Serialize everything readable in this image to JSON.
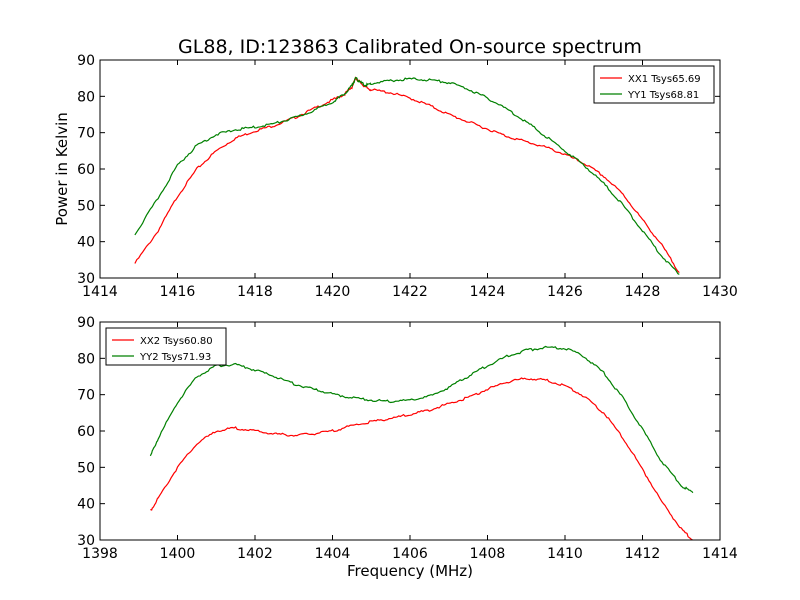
{
  "figure": {
    "title": "GL88, ID:123863 Calibrated On-source spectrum",
    "ylabel": "Power in Kelvin",
    "xlabel": "Frequency (MHz)"
  },
  "chart_data": [
    {
      "type": "line",
      "title": "GL88, ID:123863 Calibrated On-source spectrum",
      "xlabel": "",
      "ylabel": "Power in Kelvin",
      "xlim": [
        1414,
        1430
      ],
      "ylim": [
        30,
        90
      ],
      "xticks": [
        1414,
        1416,
        1418,
        1420,
        1422,
        1424,
        1426,
        1428,
        1430
      ],
      "yticks": [
        30,
        40,
        50,
        60,
        70,
        80,
        90
      ],
      "legend": "top-right",
      "series": [
        {
          "name": "XX1 Tsys65.69",
          "color": "#ff0000",
          "x": [
            1414.9,
            1415.5,
            1416.0,
            1416.5,
            1417.0,
            1417.5,
            1418.0,
            1418.5,
            1419.0,
            1419.5,
            1420.0,
            1420.3,
            1420.5,
            1420.6,
            1420.7,
            1420.85,
            1421.0,
            1421.5,
            1422.0,
            1422.5,
            1423.0,
            1423.5,
            1424.0,
            1424.5,
            1425.0,
            1425.5,
            1426.0,
            1426.5,
            1427.0,
            1427.5,
            1428.0,
            1428.5,
            1428.95
          ],
          "y": [
            34.0,
            43.0,
            52.5,
            60.0,
            65.0,
            68.5,
            70.5,
            72.0,
            74.0,
            76.5,
            79.0,
            80.5,
            82.5,
            85.0,
            84.0,
            82.5,
            81.8,
            81.0,
            79.5,
            77.5,
            75.0,
            73.0,
            71.0,
            69.0,
            67.5,
            66.0,
            64.0,
            61.5,
            58.0,
            53.0,
            46.0,
            39.0,
            31.5
          ]
        },
        {
          "name": "YY1 Tsys68.81",
          "color": "#008000",
          "x": [
            1414.9,
            1415.5,
            1416.0,
            1416.5,
            1417.0,
            1417.5,
            1418.0,
            1418.5,
            1419.0,
            1419.5,
            1420.0,
            1420.3,
            1420.5,
            1420.6,
            1420.7,
            1420.85,
            1421.0,
            1421.5,
            1422.0,
            1422.5,
            1423.0,
            1423.5,
            1424.0,
            1424.5,
            1425.0,
            1425.5,
            1426.0,
            1426.5,
            1427.0,
            1427.5,
            1428.0,
            1428.5,
            1428.95
          ],
          "y": [
            42.0,
            52.0,
            61.0,
            66.5,
            69.5,
            70.8,
            71.5,
            72.5,
            74.0,
            76.0,
            78.5,
            80.5,
            83.0,
            85.0,
            84.0,
            83.0,
            83.5,
            84.3,
            84.8,
            84.5,
            83.8,
            82.0,
            79.5,
            76.5,
            73.0,
            69.0,
            65.0,
            61.0,
            56.0,
            50.0,
            43.0,
            36.0,
            31.0
          ]
        }
      ]
    },
    {
      "type": "line",
      "title": "",
      "xlabel": "Frequency (MHz)",
      "ylabel": "",
      "xlim": [
        1398,
        1414
      ],
      "ylim": [
        30,
        90
      ],
      "xticks": [
        1398,
        1400,
        1402,
        1404,
        1406,
        1408,
        1410,
        1412,
        1414
      ],
      "yticks": [
        30,
        40,
        50,
        60,
        70,
        80,
        90
      ],
      "legend": "top-left",
      "series": [
        {
          "name": "XX2 Tsys60.80",
          "color": "#ff0000",
          "x": [
            1399.3,
            1399.5,
            1400.0,
            1400.5,
            1401.0,
            1401.5,
            1402.0,
            1402.5,
            1403.0,
            1403.5,
            1404.0,
            1404.5,
            1405.0,
            1405.5,
            1406.0,
            1406.5,
            1407.0,
            1407.5,
            1408.0,
            1408.5,
            1409.0,
            1409.5,
            1410.0,
            1410.5,
            1411.0,
            1411.5,
            1412.0,
            1412.5,
            1413.0,
            1413.3
          ],
          "y": [
            38.0,
            41.5,
            50.0,
            56.5,
            60.0,
            60.8,
            60.0,
            59.2,
            58.8,
            59.2,
            60.0,
            61.5,
            62.5,
            63.5,
            64.5,
            65.8,
            67.5,
            69.2,
            71.5,
            73.5,
            74.5,
            74.0,
            72.5,
            69.5,
            65.0,
            58.0,
            49.5,
            40.5,
            33.0,
            30.0
          ]
        },
        {
          "name": "YY2 Tsys71.93",
          "color": "#008000",
          "x": [
            1399.3,
            1399.5,
            1400.0,
            1400.5,
            1401.0,
            1401.5,
            1402.0,
            1402.5,
            1403.0,
            1403.5,
            1404.0,
            1404.5,
            1405.0,
            1405.5,
            1406.0,
            1406.5,
            1407.0,
            1407.5,
            1408.0,
            1408.5,
            1409.0,
            1409.5,
            1410.0,
            1410.5,
            1411.0,
            1411.5,
            1412.0,
            1412.5,
            1413.0,
            1413.3
          ],
          "y": [
            53.0,
            58.0,
            68.0,
            75.0,
            78.0,
            78.3,
            76.8,
            75.0,
            73.0,
            71.5,
            70.2,
            69.2,
            68.5,
            68.2,
            68.5,
            69.5,
            72.0,
            75.0,
            78.0,
            80.5,
            82.2,
            83.0,
            82.8,
            80.5,
            76.0,
            69.0,
            60.5,
            51.5,
            45.0,
            43.0
          ]
        }
      ]
    }
  ]
}
